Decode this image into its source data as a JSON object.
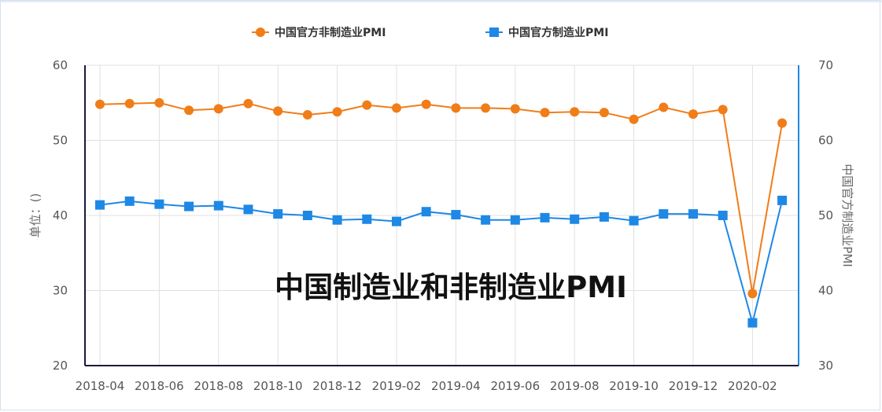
{
  "chart_data": {
    "type": "line",
    "title": "中国制造业和非制造业PMI",
    "categories": [
      "2018-04",
      "2018-05",
      "2018-06",
      "2018-07",
      "2018-08",
      "2018-09",
      "2018-10",
      "2018-11",
      "2018-12",
      "2019-01",
      "2019-02",
      "2019-03",
      "2019-04",
      "2019-05",
      "2019-06",
      "2019-07",
      "2019-08",
      "2019-09",
      "2019-10",
      "2019-11",
      "2019-12",
      "2020-01",
      "2020-02",
      "2020-03"
    ],
    "x_tick_labels": [
      "2018-04",
      "2018-06",
      "2018-08",
      "2018-10",
      "2018-12",
      "2019-02",
      "2019-04",
      "2019-06",
      "2019-08",
      "2019-10",
      "2019-12",
      "2020-02"
    ],
    "y_left": {
      "label": "单位：()",
      "min": 20,
      "max": 60,
      "ticks": [
        20,
        30,
        40,
        50,
        60
      ],
      "color": "#1a1a3a"
    },
    "y_right": {
      "label": "中国官方制造业PMI",
      "min": 30,
      "max": 70,
      "ticks": [
        30,
        40,
        50,
        60,
        70
      ],
      "color": "#1e88e5"
    },
    "grid": true,
    "legend_position": "top-center",
    "series": [
      {
        "name": "中国官方非制造业PMI",
        "axis": "left",
        "color": "#f07d18",
        "marker": "circle",
        "values": [
          54.8,
          54.9,
          55.0,
          54.0,
          54.2,
          54.9,
          53.9,
          53.4,
          53.8,
          54.7,
          54.3,
          54.8,
          54.3,
          54.3,
          54.2,
          53.7,
          53.8,
          53.7,
          52.8,
          54.4,
          53.5,
          54.1,
          29.6,
          52.3
        ]
      },
      {
        "name": "中国官方制造业PMI",
        "axis": "right",
        "color": "#1e88e5",
        "marker": "square",
        "values": [
          51.4,
          51.9,
          51.5,
          51.2,
          51.3,
          50.8,
          50.2,
          50.0,
          49.4,
          49.5,
          49.2,
          50.5,
          50.1,
          49.4,
          49.4,
          49.7,
          49.5,
          49.8,
          49.3,
          50.2,
          50.2,
          50.0,
          35.7,
          52.0
        ]
      }
    ]
  }
}
